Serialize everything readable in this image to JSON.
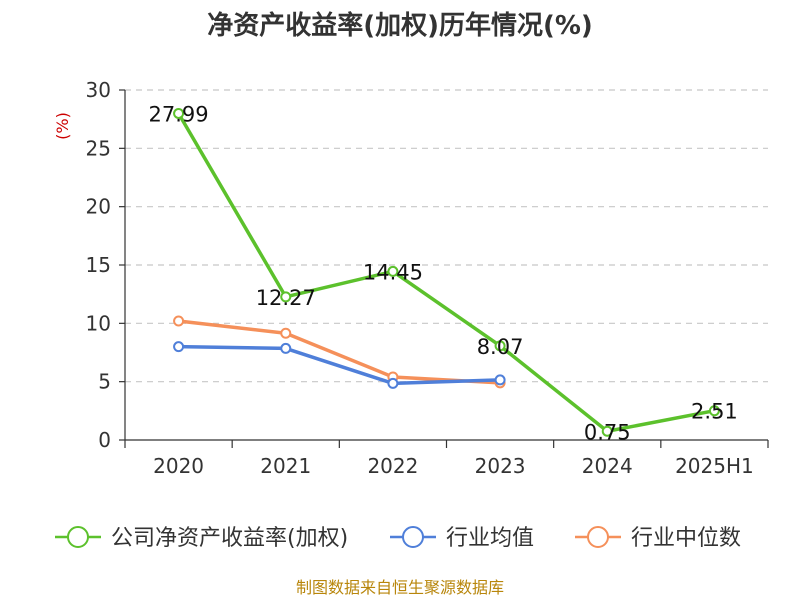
{
  "chart_data": {
    "type": "line",
    "title": "净资产收益率(加权)历年情况(%)",
    "ylabel": "(%)",
    "xlabel": "",
    "categories": [
      "2020",
      "2021",
      "2022",
      "2023",
      "2024",
      "2025H1"
    ],
    "ylim": [
      0,
      30
    ],
    "yticks": [
      0,
      5,
      10,
      15,
      20,
      25,
      30
    ],
    "grid": true,
    "legend_position": "bottom",
    "series": [
      {
        "name": "公司净资产收益率(加权)",
        "color": "#5cc12c",
        "values": [
          27.99,
          12.27,
          14.45,
          8.07,
          0.75,
          2.51
        ],
        "labels": [
          "27.99",
          "12.27",
          "14.45",
          "8.07",
          "0.75",
          "2.51"
        ]
      },
      {
        "name": "行业均值",
        "color": "#4f7fd9",
        "values": [
          8.0,
          7.85,
          4.85,
          5.15,
          null,
          null
        ]
      },
      {
        "name": "行业中位数",
        "color": "#f5905a",
        "values": [
          10.2,
          9.15,
          5.4,
          4.9,
          null,
          null
        ]
      }
    ],
    "source": "制图数据来自恒生聚源数据库"
  }
}
